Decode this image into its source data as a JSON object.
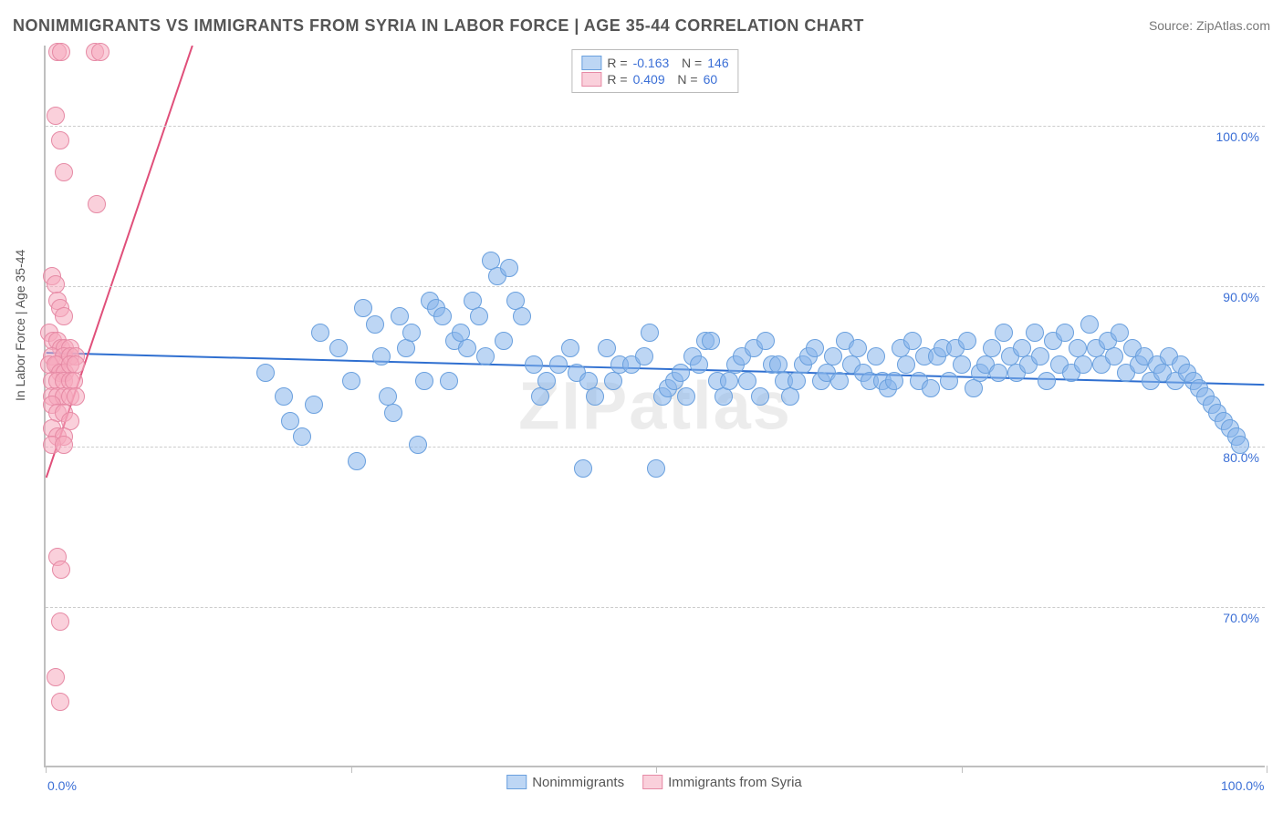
{
  "title": "NONIMMIGRANTS VS IMMIGRANTS FROM SYRIA IN LABOR FORCE | AGE 35-44 CORRELATION CHART",
  "source_label": "Source: ZipAtlas.com",
  "watermark": "ZIPatlas",
  "y_axis_title": "In Labor Force | Age 35-44",
  "chart": {
    "type": "scatter",
    "background_color": "#ffffff",
    "grid_color": "#cccccc",
    "axis_color": "#bfbfbf",
    "title_color": "#555555",
    "label_color": "#3b6fd6",
    "point_radius": 9,
    "title_fontsize": 18,
    "label_fontsize": 14,
    "xlim": [
      0,
      100
    ],
    "ylim": [
      60,
      105
    ],
    "x_ticks": [
      0,
      25,
      50,
      75,
      100
    ],
    "x_tick_labels": [
      "0.0%",
      "",
      "",
      "",
      "100.0%"
    ],
    "y_grid": [
      70,
      80,
      90,
      100
    ],
    "y_tick_labels": [
      "70.0%",
      "80.0%",
      "90.0%",
      "100.0%"
    ],
    "series": [
      {
        "name": "Nonimmigrants",
        "color_fill": "#87b4eb",
        "color_stroke": "#6aa0de",
        "fill_opacity": 0.55,
        "R": "-0.163",
        "N": "146",
        "trend": {
          "x1": 0,
          "y1": 85.8,
          "x2": 100,
          "y2": 83.8,
          "color": "#2f6fd0",
          "width": 2
        },
        "points": [
          [
            18,
            84.5
          ],
          [
            19.5,
            83
          ],
          [
            20,
            81.5
          ],
          [
            21,
            80.5
          ],
          [
            22,
            82.5
          ],
          [
            22.5,
            87
          ],
          [
            24,
            86
          ],
          [
            25,
            84
          ],
          [
            25.5,
            79
          ],
          [
            26,
            88.5
          ],
          [
            27,
            87.5
          ],
          [
            27.5,
            85.5
          ],
          [
            28,
            83
          ],
          [
            28.5,
            82
          ],
          [
            29,
            88
          ],
          [
            29.5,
            86
          ],
          [
            30,
            87
          ],
          [
            30.5,
            80
          ],
          [
            31,
            84
          ],
          [
            31.5,
            89
          ],
          [
            32,
            88.5
          ],
          [
            32.5,
            88
          ],
          [
            33,
            84
          ],
          [
            33.5,
            86.5
          ],
          [
            34,
            87
          ],
          [
            34.5,
            86
          ],
          [
            35,
            89
          ],
          [
            35.5,
            88
          ],
          [
            36,
            85.5
          ],
          [
            36.5,
            91.5
          ],
          [
            37,
            90.5
          ],
          [
            37.5,
            86.5
          ],
          [
            38,
            91
          ],
          [
            38.5,
            89
          ],
          [
            39,
            88
          ],
          [
            40,
            85
          ],
          [
            40.5,
            83
          ],
          [
            41,
            84
          ],
          [
            42,
            85
          ],
          [
            43,
            86
          ],
          [
            43.5,
            84.5
          ],
          [
            44,
            78.5
          ],
          [
            44.5,
            84
          ],
          [
            45,
            83
          ],
          [
            46,
            86
          ],
          [
            46.5,
            84
          ],
          [
            47,
            85
          ],
          [
            48,
            85
          ],
          [
            49,
            85.5
          ],
          [
            49.5,
            87
          ],
          [
            50,
            78.5
          ],
          [
            50.5,
            83
          ],
          [
            51,
            83.5
          ],
          [
            51.5,
            84
          ],
          [
            52,
            84.5
          ],
          [
            52.5,
            83
          ],
          [
            53,
            85.5
          ],
          [
            53.5,
            85
          ],
          [
            54,
            86.5
          ],
          [
            54.5,
            86.5
          ],
          [
            55,
            84
          ],
          [
            55.5,
            83
          ],
          [
            56,
            84
          ],
          [
            56.5,
            85
          ],
          [
            57,
            85.5
          ],
          [
            57.5,
            84
          ],
          [
            58,
            86
          ],
          [
            58.5,
            83
          ],
          [
            59,
            86.5
          ],
          [
            59.5,
            85
          ],
          [
            60,
            85
          ],
          [
            60.5,
            84
          ],
          [
            61,
            83
          ],
          [
            61.5,
            84
          ],
          [
            62,
            85
          ],
          [
            62.5,
            85.5
          ],
          [
            63,
            86
          ],
          [
            63.5,
            84
          ],
          [
            64,
            84.5
          ],
          [
            64.5,
            85.5
          ],
          [
            65,
            84
          ],
          [
            65.5,
            86.5
          ],
          [
            66,
            85
          ],
          [
            66.5,
            86
          ],
          [
            67,
            84.5
          ],
          [
            67.5,
            84
          ],
          [
            68,
            85.5
          ],
          [
            68.5,
            84
          ],
          [
            69,
            83.5
          ],
          [
            69.5,
            84
          ],
          [
            70,
            86
          ],
          [
            70.5,
            85
          ],
          [
            71,
            86.5
          ],
          [
            71.5,
            84
          ],
          [
            72,
            85.5
          ],
          [
            72.5,
            83.5
          ],
          [
            73,
            85.5
          ],
          [
            73.5,
            86
          ],
          [
            74,
            84
          ],
          [
            74.5,
            86
          ],
          [
            75,
            85
          ],
          [
            75.5,
            86.5
          ],
          [
            76,
            83.5
          ],
          [
            76.5,
            84.5
          ],
          [
            77,
            85
          ],
          [
            77.5,
            86
          ],
          [
            78,
            84.5
          ],
          [
            78.5,
            87
          ],
          [
            79,
            85.5
          ],
          [
            79.5,
            84.5
          ],
          [
            80,
            86
          ],
          [
            80.5,
            85
          ],
          [
            81,
            87
          ],
          [
            81.5,
            85.5
          ],
          [
            82,
            84
          ],
          [
            82.5,
            86.5
          ],
          [
            83,
            85
          ],
          [
            83.5,
            87
          ],
          [
            84,
            84.5
          ],
          [
            84.5,
            86
          ],
          [
            85,
            85
          ],
          [
            85.5,
            87.5
          ],
          [
            86,
            86
          ],
          [
            86.5,
            85
          ],
          [
            87,
            86.5
          ],
          [
            87.5,
            85.5
          ],
          [
            88,
            87
          ],
          [
            88.5,
            84.5
          ],
          [
            89,
            86
          ],
          [
            89.5,
            85
          ],
          [
            90,
            85.5
          ],
          [
            90.5,
            84
          ],
          [
            91,
            85
          ],
          [
            91.5,
            84.5
          ],
          [
            92,
            85.5
          ],
          [
            92.5,
            84
          ],
          [
            93,
            85
          ],
          [
            93.5,
            84.5
          ],
          [
            94,
            84
          ],
          [
            94.5,
            83.5
          ],
          [
            95,
            83
          ],
          [
            95.5,
            82.5
          ],
          [
            96,
            82
          ],
          [
            96.5,
            81.5
          ],
          [
            97,
            81
          ],
          [
            97.5,
            80.5
          ],
          [
            97.8,
            80
          ]
        ]
      },
      {
        "name": "Immigrants from Syria",
        "color_fill": "#f5aabe",
        "color_stroke": "#e68aa5",
        "fill_opacity": 0.55,
        "R": "0.409",
        "N": "60",
        "trend": {
          "x1": 0,
          "y1": 78,
          "x2": 12,
          "y2": 105,
          "color": "#e04f7a",
          "width": 2
        },
        "points": [
          [
            1,
            104.5
          ],
          [
            1.3,
            104.5
          ],
          [
            4,
            104.5
          ],
          [
            4.5,
            104.5
          ],
          [
            0.8,
            100.5
          ],
          [
            1.2,
            99
          ],
          [
            1.5,
            97
          ],
          [
            4.2,
            95
          ],
          [
            0.5,
            90.5
          ],
          [
            0.8,
            90
          ],
          [
            1,
            89
          ],
          [
            1.2,
            88.5
          ],
          [
            1.5,
            88
          ],
          [
            0.3,
            87
          ],
          [
            0.6,
            86.5
          ],
          [
            1,
            86.5
          ],
          [
            1.3,
            86
          ],
          [
            1.6,
            86
          ],
          [
            2,
            86
          ],
          [
            0.5,
            85.5
          ],
          [
            1,
            85
          ],
          [
            1.5,
            85.5
          ],
          [
            2,
            85.5
          ],
          [
            2.5,
            85.5
          ],
          [
            0.3,
            85
          ],
          [
            0.8,
            85
          ],
          [
            1.2,
            84.5
          ],
          [
            1.6,
            84.5
          ],
          [
            2,
            85
          ],
          [
            2.5,
            85
          ],
          [
            0.5,
            84
          ],
          [
            1,
            84
          ],
          [
            1.5,
            84
          ],
          [
            2,
            84
          ],
          [
            2.3,
            84
          ],
          [
            0.5,
            83
          ],
          [
            1,
            83
          ],
          [
            1.5,
            83
          ],
          [
            2,
            83
          ],
          [
            2.5,
            83
          ],
          [
            0.5,
            82.5
          ],
          [
            1,
            82
          ],
          [
            1.5,
            82
          ],
          [
            2,
            81.5
          ],
          [
            0.5,
            81
          ],
          [
            1,
            80.5
          ],
          [
            1.5,
            80.5
          ],
          [
            0.5,
            80
          ],
          [
            1.5,
            80
          ],
          [
            1,
            73
          ],
          [
            1.3,
            72.2
          ],
          [
            1.2,
            69
          ],
          [
            0.8,
            65.5
          ],
          [
            1.2,
            64
          ]
        ]
      }
    ]
  },
  "legend_bottom": [
    {
      "label": "Nonimmigrants",
      "swatch": "blue"
    },
    {
      "label": "Immigrants from Syria",
      "swatch": "pink"
    }
  ]
}
